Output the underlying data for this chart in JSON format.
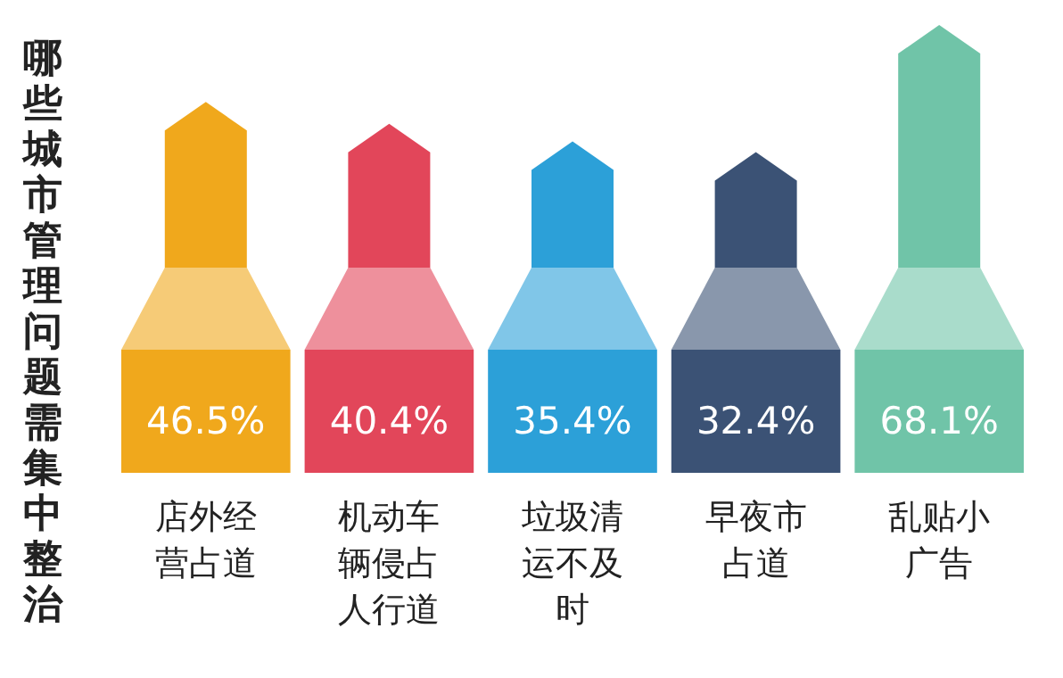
{
  "chart_data": {
    "type": "bar",
    "title": "哪些城市管理问题需集中整治",
    "categories": [
      "店外经营占道",
      "机动车辆侵占人行道",
      "垃圾清运不及时",
      "早夜市占道",
      "乱贴小广告"
    ],
    "values": [
      46.5,
      40.4,
      35.4,
      32.4,
      68.1
    ],
    "value_labels": [
      "46.5%",
      "40.4%",
      "35.4%",
      "32.4%",
      "68.1%"
    ],
    "colors": [
      "#f0a81c",
      "#e2465a",
      "#2ca0d8",
      "#3b5275",
      "#70c4a8"
    ]
  }
}
